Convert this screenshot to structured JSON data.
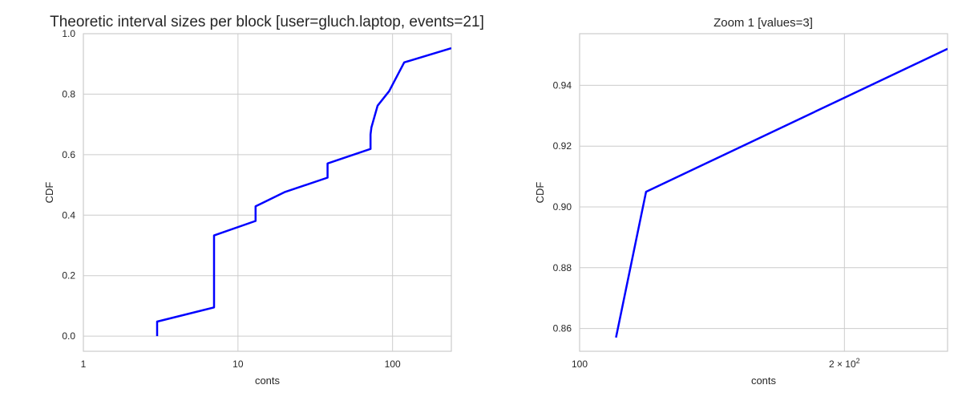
{
  "chart_data": [
    {
      "type": "line",
      "title": "Theoretic interval sizes per block [user=gluch.laptop, events=21]",
      "xlabel": "conts",
      "ylabel": "CDF",
      "xscale": "log",
      "xlim": [
        1,
        240
      ],
      "ylim": [
        -0.05,
        1.0
      ],
      "grid": true,
      "xticks": [
        {
          "value": 1,
          "label": "1"
        },
        {
          "value": 10,
          "label": "10"
        },
        {
          "value": 100,
          "label": "100"
        }
      ],
      "yticks": [
        {
          "value": 0.0,
          "label": "0.0"
        },
        {
          "value": 0.2,
          "label": "0.2"
        },
        {
          "value": 0.4,
          "label": "0.4"
        },
        {
          "value": 0.6,
          "label": "0.6"
        },
        {
          "value": 0.8,
          "label": "0.8"
        },
        {
          "value": 1.0,
          "label": "1.0"
        }
      ],
      "series": [
        {
          "color": "#0000ff",
          "x": [
            3,
            3,
            7,
            7,
            13,
            13,
            20,
            38,
            38,
            72,
            72,
            73,
            80,
            95,
            119,
            240
          ],
          "y": [
            0.0,
            0.048,
            0.095,
            0.333,
            0.381,
            0.429,
            0.476,
            0.524,
            0.571,
            0.619,
            0.667,
            0.69,
            0.762,
            0.81,
            0.905,
            0.952
          ]
        }
      ]
    },
    {
      "type": "line",
      "title": "Zoom 1 [values=3]",
      "xlabel": "conts",
      "ylabel": "CDF",
      "xscale": "log",
      "xlim": [
        100,
        262
      ],
      "ylim": [
        0.8525,
        0.957
      ],
      "grid": true,
      "xticks": [
        {
          "value": 100,
          "label": "100"
        },
        {
          "value": 200,
          "label": "2 × 10",
          "sup": "2"
        }
      ],
      "yticks": [
        {
          "value": 0.86,
          "label": "0.86"
        },
        {
          "value": 0.88,
          "label": "0.88"
        },
        {
          "value": 0.9,
          "label": "0.90"
        },
        {
          "value": 0.92,
          "label": "0.92"
        },
        {
          "value": 0.94,
          "label": "0.94"
        }
      ],
      "series": [
        {
          "color": "#0000ff",
          "x": [
            110,
            119,
            262
          ],
          "y": [
            0.857,
            0.905,
            0.952
          ]
        }
      ]
    }
  ]
}
